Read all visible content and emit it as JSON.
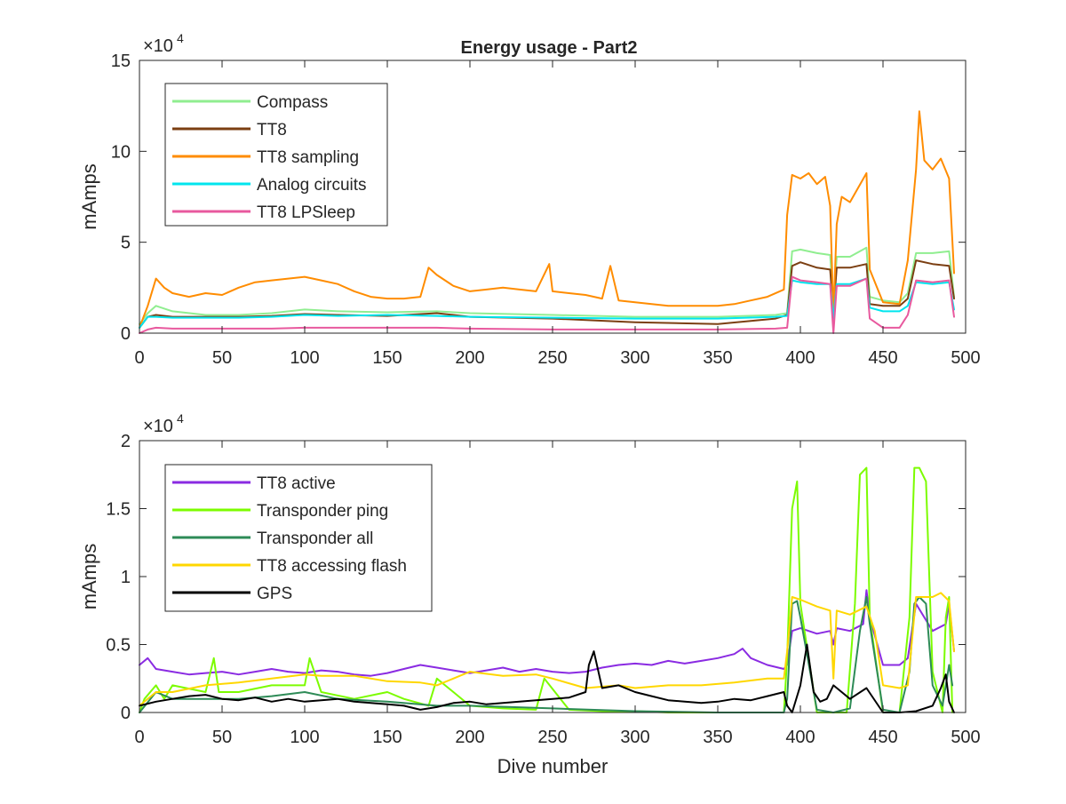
{
  "figure": {
    "background": "#ffffff",
    "axis_color": "#262626"
  },
  "chart_data": [
    {
      "type": "line",
      "title": "Energy usage - Part2",
      "xlabel": "",
      "ylabel": "mAmps",
      "xlim": [
        0,
        500
      ],
      "ylim": [
        0,
        150000
      ],
      "xticks": [
        0,
        50,
        100,
        150,
        200,
        250,
        300,
        350,
        400,
        450,
        500
      ],
      "yticks": [
        0,
        50000,
        100000,
        150000
      ],
      "ytick_labels": [
        "0",
        "5",
        "10",
        "15"
      ],
      "exponent_label": "×10",
      "exponent_power": "4",
      "grid": false,
      "legend_position": "top-left",
      "series": [
        {
          "name": "Compass",
          "color": "#90ee90",
          "x": [
            0,
            5,
            10,
            20,
            40,
            60,
            80,
            100,
            120,
            150,
            180,
            200,
            250,
            300,
            350,
            385,
            392,
            395,
            400,
            410,
            418,
            420,
            422,
            430,
            440,
            442,
            450,
            460,
            465,
            470,
            480,
            490,
            493
          ],
          "y": [
            5000,
            11000,
            15000,
            12000,
            10000,
            10000,
            11000,
            13000,
            12000,
            11500,
            12000,
            11000,
            10000,
            9000,
            9000,
            10000,
            11000,
            45000,
            46000,
            44000,
            43000,
            15000,
            42000,
            42000,
            47000,
            20000,
            18000,
            17000,
            22000,
            44000,
            44000,
            45000,
            20000
          ]
        },
        {
          "name": "TT8",
          "color": "#7b3f12",
          "x": [
            0,
            5,
            10,
            20,
            40,
            60,
            80,
            100,
            120,
            150,
            180,
            200,
            250,
            300,
            350,
            385,
            392,
            395,
            400,
            410,
            418,
            420,
            422,
            430,
            440,
            442,
            450,
            460,
            465,
            470,
            480,
            490,
            493
          ],
          "y": [
            3000,
            9000,
            10000,
            9000,
            9000,
            9000,
            9500,
            10500,
            10000,
            9500,
            11000,
            9000,
            8000,
            6000,
            5000,
            8000,
            10000,
            37000,
            39000,
            36000,
            35000,
            12000,
            36000,
            36000,
            38000,
            16000,
            15000,
            15000,
            19000,
            40000,
            38000,
            37000,
            19000
          ]
        },
        {
          "name": "TT8 sampling",
          "color": "#ff8c00",
          "x": [
            0,
            5,
            10,
            15,
            20,
            30,
            40,
            50,
            60,
            70,
            80,
            90,
            100,
            110,
            120,
            130,
            140,
            150,
            160,
            170,
            175,
            180,
            190,
            200,
            210,
            220,
            230,
            240,
            248,
            250,
            260,
            270,
            280,
            285,
            290,
            300,
            310,
            320,
            330,
            340,
            350,
            360,
            370,
            380,
            390,
            392,
            395,
            400,
            405,
            410,
            415,
            418,
            420,
            422,
            425,
            430,
            440,
            442,
            450,
            460,
            465,
            470,
            472,
            475,
            480,
            485,
            490,
            493
          ],
          "y": [
            3000,
            15000,
            30000,
            25000,
            22000,
            20000,
            22000,
            21000,
            25000,
            28000,
            29000,
            30000,
            31000,
            29000,
            27000,
            23000,
            20000,
            19000,
            19000,
            20000,
            36000,
            32000,
            26000,
            23000,
            24000,
            25000,
            24000,
            23000,
            38000,
            23000,
            22000,
            21000,
            19000,
            37000,
            18000,
            17000,
            16000,
            15000,
            15000,
            15000,
            15000,
            16000,
            18000,
            20000,
            24000,
            65000,
            87000,
            85000,
            88000,
            82000,
            86000,
            70000,
            10000,
            60000,
            75000,
            72000,
            88000,
            35000,
            17000,
            16000,
            40000,
            90000,
            122000,
            95000,
            90000,
            96000,
            85000,
            33000
          ]
        },
        {
          "name": "Analog circuits",
          "color": "#00e5ee",
          "x": [
            0,
            5,
            10,
            20,
            40,
            60,
            80,
            100,
            120,
            150,
            180,
            200,
            250,
            300,
            350,
            385,
            392,
            395,
            400,
            410,
            418,
            420,
            422,
            430,
            440,
            442,
            450,
            460,
            465,
            470,
            480,
            490,
            493
          ],
          "y": [
            3000,
            9000,
            9000,
            8500,
            8500,
            8500,
            9000,
            10000,
            9500,
            10000,
            9500,
            9000,
            8500,
            8000,
            8000,
            9000,
            9500,
            29000,
            28000,
            27000,
            27000,
            8000,
            27000,
            27000,
            30000,
            14000,
            12000,
            12000,
            15000,
            28000,
            27000,
            28000,
            13000
          ]
        },
        {
          "name": "TT8 LPSleep",
          "color": "#e8599e",
          "x": [
            0,
            5,
            10,
            20,
            40,
            60,
            80,
            100,
            120,
            150,
            180,
            200,
            250,
            300,
            350,
            385,
            392,
            395,
            400,
            410,
            418,
            420,
            422,
            430,
            440,
            442,
            450,
            460,
            465,
            470,
            480,
            490,
            493
          ],
          "y": [
            0,
            2000,
            3000,
            2500,
            2500,
            2500,
            2500,
            3000,
            3000,
            3000,
            3000,
            2500,
            2000,
            2000,
            2000,
            2500,
            3000,
            31000,
            29000,
            28000,
            27000,
            0,
            26000,
            26000,
            30000,
            8000,
            3000,
            3000,
            10000,
            29000,
            28000,
            29000,
            9000
          ]
        }
      ]
    },
    {
      "type": "line",
      "title": "",
      "xlabel": "Dive number",
      "ylabel": "mAmps",
      "xlim": [
        0,
        500
      ],
      "ylim": [
        0,
        20000
      ],
      "xticks": [
        0,
        50,
        100,
        150,
        200,
        250,
        300,
        350,
        400,
        450,
        500
      ],
      "yticks": [
        0,
        5000,
        10000,
        15000,
        20000
      ],
      "ytick_labels": [
        "0",
        "0.5",
        "1",
        "1.5",
        "2"
      ],
      "exponent_label": "×10",
      "exponent_power": "4",
      "grid": false,
      "legend_position": "top-left",
      "series": [
        {
          "name": "TT8 active",
          "color": "#8a2be2",
          "x": [
            0,
            5,
            10,
            20,
            30,
            40,
            50,
            60,
            70,
            80,
            90,
            100,
            110,
            120,
            130,
            140,
            150,
            160,
            170,
            180,
            190,
            200,
            210,
            220,
            230,
            240,
            250,
            260,
            270,
            280,
            290,
            300,
            310,
            320,
            330,
            340,
            350,
            360,
            365,
            370,
            380,
            390,
            392,
            395,
            400,
            410,
            418,
            420,
            422,
            430,
            438,
            440,
            442,
            450,
            460,
            465,
            470,
            480,
            488,
            490,
            493
          ],
          "y": [
            3500,
            4000,
            3200,
            3000,
            2800,
            2900,
            3000,
            2800,
            3000,
            3200,
            3000,
            2900,
            3100,
            3000,
            2800,
            2700,
            2900,
            3200,
            3500,
            3300,
            3100,
            2900,
            3100,
            3300,
            3000,
            3200,
            3000,
            2900,
            3000,
            3300,
            3500,
            3600,
            3500,
            3800,
            3600,
            3800,
            4000,
            4300,
            4700,
            4000,
            3500,
            3200,
            3500,
            6000,
            6200,
            5800,
            6000,
            5000,
            6200,
            6000,
            6500,
            9000,
            7000,
            3500,
            3500,
            4000,
            8000,
            6000,
            6500,
            8000,
            4500
          ]
        },
        {
          "name": "Transponder ping",
          "color": "#7cfc00",
          "x": [
            0,
            3,
            10,
            15,
            20,
            40,
            45,
            48,
            60,
            80,
            100,
            103,
            110,
            130,
            150,
            160,
            175,
            180,
            190,
            200,
            220,
            240,
            245,
            260,
            280,
            300,
            320,
            350,
            380,
            390,
            392,
            395,
            398,
            400,
            410,
            420,
            428,
            433,
            436,
            440,
            442,
            450,
            460,
            466,
            469,
            472,
            476,
            480,
            486,
            488,
            490,
            492
          ],
          "y": [
            0,
            1000,
            2000,
            1000,
            2000,
            1500,
            4000,
            1500,
            1500,
            2000,
            2000,
            4000,
            1500,
            1000,
            1500,
            1000,
            500,
            2500,
            1500,
            500,
            300,
            200,
            2500,
            200,
            100,
            100,
            0,
            0,
            0,
            0,
            4000,
            15000,
            17000,
            8000,
            0,
            0,
            0,
            8000,
            17500,
            18000,
            7000,
            0,
            0,
            7000,
            18000,
            18000,
            17000,
            3000,
            0,
            7000,
            8500,
            0
          ]
        },
        {
          "name": "Transponder all",
          "color": "#2e8b57",
          "x": [
            0,
            10,
            20,
            40,
            60,
            80,
            100,
            120,
            150,
            180,
            200,
            250,
            300,
            350,
            390,
            392,
            395,
            398,
            400,
            410,
            420,
            430,
            436,
            440,
            442,
            450,
            460,
            466,
            469,
            472,
            476,
            480,
            486,
            490,
            492
          ],
          "y": [
            0,
            1500,
            1000,
            1000,
            1000,
            1200,
            1500,
            1000,
            800,
            500,
            500,
            300,
            100,
            0,
            0,
            1000,
            8000,
            8200,
            7000,
            200,
            0,
            300,
            6000,
            8500,
            6500,
            200,
            0,
            3000,
            8000,
            8500,
            8000,
            2000,
            500,
            3500,
            2000
          ]
        },
        {
          "name": "TT8 accessing flash",
          "color": "#ffd700",
          "x": [
            0,
            10,
            20,
            40,
            60,
            80,
            100,
            110,
            130,
            150,
            170,
            180,
            200,
            220,
            240,
            250,
            270,
            290,
            300,
            320,
            340,
            360,
            380,
            390,
            392,
            395,
            400,
            410,
            418,
            420,
            422,
            430,
            440,
            445,
            450,
            460,
            465,
            470,
            480,
            485,
            490,
            493
          ],
          "y": [
            500,
            1500,
            1500,
            2000,
            2200,
            2500,
            2800,
            2700,
            2700,
            2300,
            2200,
            2000,
            3000,
            2700,
            2800,
            2500,
            1800,
            2000,
            1800,
            2000,
            2000,
            2200,
            2500,
            2500,
            4500,
            8500,
            8300,
            7800,
            7500,
            2500,
            7500,
            7200,
            7800,
            6000,
            2000,
            1800,
            2000,
            8500,
            8500,
            8800,
            8200,
            4500
          ]
        },
        {
          "name": "GPS",
          "color": "#000000",
          "x": [
            0,
            10,
            20,
            30,
            40,
            50,
            60,
            70,
            80,
            90,
            100,
            110,
            120,
            130,
            140,
            150,
            160,
            170,
            180,
            190,
            200,
            210,
            220,
            230,
            240,
            250,
            260,
            270,
            272,
            275,
            280,
            290,
            300,
            310,
            320,
            330,
            340,
            350,
            360,
            370,
            380,
            390,
            392,
            395,
            400,
            404,
            408,
            412,
            416,
            420,
            425,
            430,
            440,
            450,
            460,
            470,
            480,
            485,
            488,
            490,
            493
          ],
          "y": [
            500,
            800,
            1000,
            1200,
            1300,
            1000,
            900,
            1100,
            800,
            1000,
            800,
            900,
            1000,
            800,
            700,
            600,
            500,
            200,
            400,
            700,
            800,
            600,
            700,
            800,
            900,
            1000,
            1100,
            1500,
            3500,
            4500,
            1800,
            2000,
            1500,
            1200,
            900,
            800,
            700,
            800,
            1000,
            900,
            1200,
            1500,
            500,
            0,
            2000,
            5000,
            1500,
            800,
            1000,
            2000,
            1500,
            1000,
            1800,
            0,
            0,
            100,
            500,
            1800,
            2800,
            800,
            0
          ]
        }
      ]
    }
  ]
}
